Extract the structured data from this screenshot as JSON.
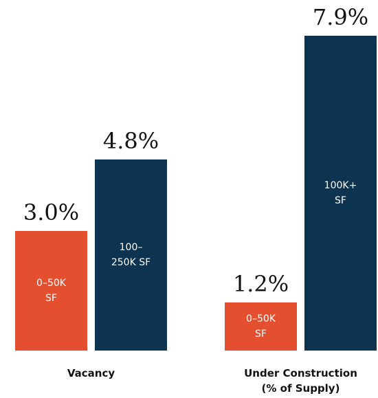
{
  "chart_data": {
    "type": "grouped_bar",
    "groups": [
      {
        "name": "Vacancy",
        "labels": [
          "0–50K SF",
          "100–250K SF"
        ],
        "values": [
          3.0,
          4.8
        ],
        "value_labels": [
          "3.0%",
          "4.8%"
        ],
        "colors": [
          "#e4502f",
          "#0c3450"
        ]
      },
      {
        "name": "Under Construction (% of Supply)",
        "labels": [
          "0–50K SF",
          "100K+ SF"
        ],
        "values": [
          1.2,
          7.9
        ],
        "value_labels": [
          "1.2%",
          "7.9%"
        ],
        "colors": [
          "#e4502f",
          "#0c3450"
        ]
      }
    ]
  }
}
